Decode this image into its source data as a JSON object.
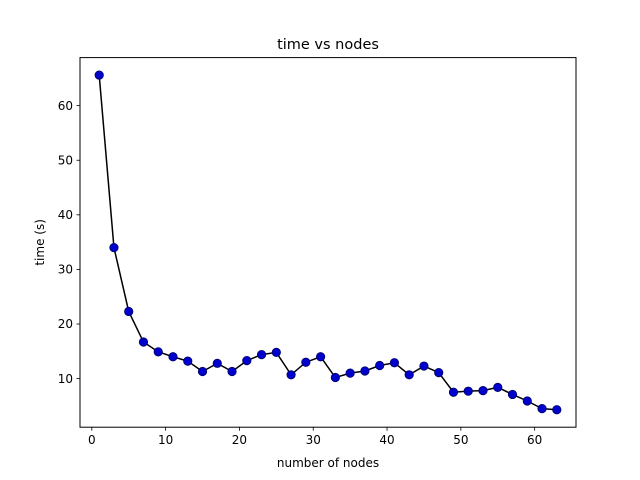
{
  "chart_data": {
    "type": "line",
    "title": "time vs nodes",
    "xlabel": "number of nodes",
    "ylabel": "time (s)",
    "xlim": [
      -1.6,
      65.6
    ],
    "ylim": [
      1.1,
      68.8
    ],
    "xticks": [
      0,
      10,
      20,
      30,
      40,
      50,
      60
    ],
    "yticks": [
      10,
      20,
      30,
      40,
      50,
      60
    ],
    "grid": false,
    "line_color": "#000000",
    "marker_color": "#0000cc",
    "series": [
      {
        "x": [
          1,
          3,
          5,
          7,
          9,
          11,
          13,
          15,
          17,
          19,
          21,
          23,
          25,
          27,
          29,
          31,
          33,
          35,
          37,
          39,
          41,
          43,
          45,
          47,
          49,
          51,
          53,
          55,
          57,
          59,
          61,
          63
        ],
        "y": [
          65.6,
          34.0,
          22.3,
          16.7,
          14.9,
          14.0,
          13.2,
          11.3,
          12.8,
          11.3,
          13.3,
          14.4,
          14.8,
          10.7,
          13.0,
          14.0,
          10.2,
          11.0,
          11.4,
          12.4,
          12.9,
          10.7,
          12.3,
          11.1,
          7.5,
          7.7,
          7.8,
          8.4,
          7.1,
          5.9,
          4.5,
          4.3
        ]
      }
    ]
  }
}
